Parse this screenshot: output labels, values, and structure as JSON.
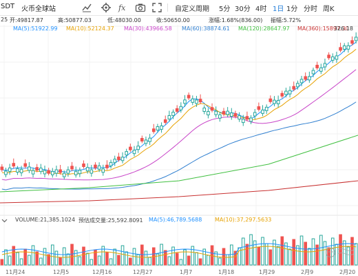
{
  "toolbar": {
    "symbol": "SDT",
    "exchange": "火币全球站",
    "custom_period": "自定义周期",
    "periods": [
      "5分",
      "30分",
      "4时",
      "1日",
      "1分",
      "分时",
      "周K"
    ],
    "active_period": "1日"
  },
  "info": {
    "date": "25",
    "open": "开:49817.87",
    "high": "高:50877.03",
    "low": "低:48030.00",
    "close": "收:50650.00",
    "change": "涨幅:1.68%(836.00)",
    "amplitude": "振幅:5.72%"
  },
  "ma_legend": [
    {
      "label": "MA(5):51922.99",
      "color": "#1e90ff"
    },
    {
      "label": "MA(10):52124.37",
      "color": "#e6a100"
    },
    {
      "label": "MA(30):43966.58",
      "color": "#c844c8"
    },
    {
      "label": "MA(60):38874.61",
      "color": "#2f7fd0"
    },
    {
      "label": "MA(120):28647.97",
      "color": "#3fbf3f"
    },
    {
      "label": "MA(360):15897.30",
      "color": "#c83030"
    }
  ],
  "price_label": "326.18",
  "volume_legend": {
    "volume": "VOLUME:21,385.1024",
    "estimate": "预估成交量:25,592.8091",
    "ma5": "MA(5):46,789.5688",
    "ma10": "MA(10):37,297.5633"
  },
  "x_axis_labels": [
    "11月24",
    "12月5",
    "12月16",
    "12月27",
    "1月7",
    "1月18",
    "1月29",
    "2月9",
    "2月20"
  ],
  "colors": {
    "up": "#26a69a",
    "down": "#ef5350",
    "ma5": "#1e90ff",
    "ma10": "#e6a100",
    "ma30": "#c844c8",
    "ma60": "#2f7fd0",
    "ma120": "#3fbf3f",
    "ma360": "#c83030"
  },
  "icons": [
    "chart-line-icon",
    "fx-icon",
    "gear-icon",
    "camera-icon",
    "expand-icon"
  ]
}
